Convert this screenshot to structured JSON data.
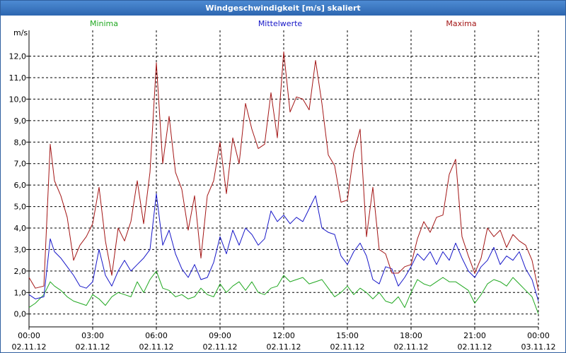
{
  "window": {
    "title": "Windgeschwindigkeit [m/s] skaliert"
  },
  "colors": {
    "min": "#21a821",
    "mean": "#1717c8",
    "max": "#a31515",
    "grid": "#000000",
    "axis": "#000000"
  },
  "chart_data": {
    "type": "line",
    "title": "Windgeschwindigkeit [m/s] skaliert",
    "ylabel": "m/s",
    "xlabel": "",
    "xlim": [
      0,
      24
    ],
    "ylim": [
      -0.6,
      13.2
    ],
    "grid": true,
    "yticks": [
      0,
      1,
      2,
      3,
      4,
      5,
      6,
      7,
      8,
      9,
      10,
      11,
      12
    ],
    "ytick_labels": [
      "0,0",
      "1,0",
      "2,0",
      "3,0",
      "4,0",
      "5,0",
      "6,0",
      "7,0",
      "8,0",
      "9,0",
      "10,0",
      "11,0",
      "12,0"
    ],
    "xticks": [
      0,
      3,
      6,
      9,
      12,
      15,
      18,
      21,
      24
    ],
    "xtick_times": [
      "00:00",
      "03:00",
      "06:00",
      "09:00",
      "12:00",
      "15:00",
      "18:00",
      "21:00",
      "00:00"
    ],
    "xtick_dates": [
      "02.11.12",
      "02.11.12",
      "02.11.12",
      "02.11.12",
      "02.11.12",
      "02.11.12",
      "02.11.12",
      "02.11.12",
      "03.11.12"
    ],
    "legend": [
      "Minima",
      "Mittelwerte",
      "Maxima"
    ],
    "series": [
      {
        "name": "Minima",
        "x": [
          0,
          0.3,
          0.7,
          1.0,
          1.2,
          1.5,
          1.8,
          2.1,
          2.4,
          2.7,
          3.0,
          3.3,
          3.6,
          3.9,
          4.2,
          4.5,
          4.8,
          5.1,
          5.4,
          5.7,
          6.0,
          6.3,
          6.6,
          6.9,
          7.2,
          7.5,
          7.8,
          8.1,
          8.4,
          8.7,
          9.0,
          9.3,
          9.6,
          9.9,
          10.2,
          10.5,
          10.8,
          11.1,
          11.4,
          11.7,
          12.0,
          12.3,
          12.6,
          12.9,
          13.2,
          13.5,
          13.8,
          14.1,
          14.4,
          14.7,
          15.0,
          15.3,
          15.6,
          15.9,
          16.2,
          16.5,
          16.8,
          17.1,
          17.4,
          17.7,
          18.0,
          18.3,
          18.6,
          18.9,
          19.2,
          19.5,
          19.8,
          20.1,
          20.4,
          20.7,
          21.0,
          21.3,
          21.6,
          21.9,
          22.2,
          22.5,
          22.8,
          23.1,
          23.4,
          23.7,
          24.0
        ],
        "values": [
          0.3,
          0.5,
          0.9,
          1.5,
          1.3,
          1.1,
          0.8,
          0.6,
          0.5,
          0.4,
          0.9,
          0.7,
          0.4,
          0.8,
          1.0,
          0.9,
          0.8,
          1.5,
          1.0,
          1.6,
          2.0,
          1.2,
          1.1,
          0.8,
          0.9,
          0.7,
          0.8,
          1.2,
          0.9,
          0.8,
          1.4,
          1.0,
          1.3,
          1.5,
          1.1,
          1.5,
          1.0,
          0.9,
          1.2,
          1.3,
          1.8,
          1.5,
          1.6,
          1.7,
          1.4,
          1.5,
          1.6,
          1.2,
          0.8,
          1.0,
          1.3,
          0.9,
          1.2,
          1.0,
          0.7,
          1.0,
          0.6,
          0.5,
          0.8,
          0.3,
          1.0,
          1.6,
          1.4,
          1.3,
          1.5,
          1.7,
          1.5,
          1.5,
          1.3,
          1.1,
          0.5,
          0.9,
          1.4,
          1.6,
          1.5,
          1.3,
          1.7,
          1.4,
          1.1,
          0.8,
          0.0
        ]
      },
      {
        "name": "Mittelwerte",
        "x": [
          0,
          0.3,
          0.7,
          1.0,
          1.2,
          1.5,
          1.8,
          2.1,
          2.4,
          2.7,
          3.0,
          3.3,
          3.6,
          3.9,
          4.2,
          4.5,
          4.8,
          5.1,
          5.4,
          5.7,
          6.0,
          6.3,
          6.6,
          6.9,
          7.2,
          7.5,
          7.8,
          8.1,
          8.4,
          8.7,
          9.0,
          9.3,
          9.6,
          9.9,
          10.2,
          10.5,
          10.8,
          11.1,
          11.4,
          11.7,
          12.0,
          12.3,
          12.6,
          12.9,
          13.2,
          13.5,
          13.8,
          14.1,
          14.4,
          14.7,
          15.0,
          15.3,
          15.6,
          15.9,
          16.2,
          16.5,
          16.8,
          17.1,
          17.4,
          17.7,
          18.0,
          18.3,
          18.6,
          18.9,
          19.2,
          19.5,
          19.8,
          20.1,
          20.4,
          20.7,
          21.0,
          21.3,
          21.6,
          21.9,
          22.2,
          22.5,
          22.8,
          23.1,
          23.4,
          23.7,
          24.0
        ],
        "values": [
          0.9,
          0.7,
          0.8,
          3.5,
          2.9,
          2.6,
          2.2,
          1.8,
          1.3,
          1.2,
          1.5,
          3.0,
          1.8,
          1.3,
          2.0,
          2.5,
          2.0,
          2.3,
          2.6,
          3.0,
          5.6,
          3.2,
          3.9,
          2.8,
          2.1,
          1.7,
          2.3,
          1.6,
          1.7,
          2.4,
          3.6,
          2.8,
          3.9,
          3.2,
          4.0,
          3.7,
          3.2,
          3.5,
          4.8,
          4.3,
          4.6,
          4.2,
          4.5,
          4.3,
          4.9,
          5.5,
          4.0,
          3.8,
          3.7,
          2.7,
          2.3,
          2.9,
          3.3,
          2.7,
          1.6,
          1.4,
          2.2,
          2.1,
          1.3,
          1.7,
          2.2,
          2.8,
          2.5,
          2.9,
          2.3,
          2.9,
          2.5,
          3.3,
          2.6,
          2.0,
          1.7,
          2.2,
          2.5,
          3.1,
          2.3,
          2.7,
          2.5,
          2.9,
          2.1,
          1.6,
          0.6
        ]
      },
      {
        "name": "Maxima",
        "x": [
          0,
          0.3,
          0.7,
          1.0,
          1.2,
          1.5,
          1.8,
          2.1,
          2.4,
          2.7,
          3.0,
          3.3,
          3.6,
          3.9,
          4.2,
          4.5,
          4.8,
          5.1,
          5.4,
          5.7,
          6.0,
          6.3,
          6.6,
          6.9,
          7.2,
          7.5,
          7.8,
          8.1,
          8.4,
          8.7,
          9.0,
          9.3,
          9.6,
          9.9,
          10.2,
          10.5,
          10.8,
          11.1,
          11.4,
          11.7,
          12.0,
          12.3,
          12.6,
          12.9,
          13.2,
          13.5,
          13.8,
          14.1,
          14.4,
          14.7,
          15.0,
          15.3,
          15.6,
          15.9,
          16.2,
          16.5,
          16.8,
          17.1,
          17.4,
          17.7,
          18.0,
          18.3,
          18.6,
          18.9,
          19.2,
          19.5,
          19.8,
          20.1,
          20.4,
          20.7,
          21.0,
          21.3,
          21.6,
          21.9,
          22.2,
          22.5,
          22.8,
          23.1,
          23.4,
          23.7,
          24.0
        ],
        "values": [
          1.7,
          1.2,
          1.3,
          7.9,
          6.2,
          5.5,
          4.5,
          2.5,
          3.2,
          3.6,
          4.2,
          5.9,
          3.4,
          1.8,
          4.0,
          3.4,
          4.3,
          6.2,
          4.2,
          6.6,
          11.7,
          7.0,
          9.2,
          6.6,
          5.8,
          3.9,
          5.5,
          2.6,
          5.5,
          6.2,
          8.0,
          5.6,
          8.2,
          7.0,
          9.8,
          8.6,
          7.7,
          7.9,
          10.3,
          8.2,
          12.2,
          9.4,
          10.1,
          10.0,
          9.5,
          11.8,
          9.8,
          7.4,
          6.9,
          5.2,
          5.3,
          7.5,
          8.6,
          3.6,
          5.9,
          3.0,
          2.8,
          1.9,
          1.9,
          2.2,
          2.3,
          3.5,
          4.3,
          3.8,
          4.5,
          4.6,
          6.5,
          7.2,
          3.6,
          2.7,
          1.9,
          2.6,
          4.0,
          3.6,
          3.9,
          3.1,
          3.7,
          3.4,
          3.2,
          2.5,
          1.1
        ]
      }
    ]
  }
}
